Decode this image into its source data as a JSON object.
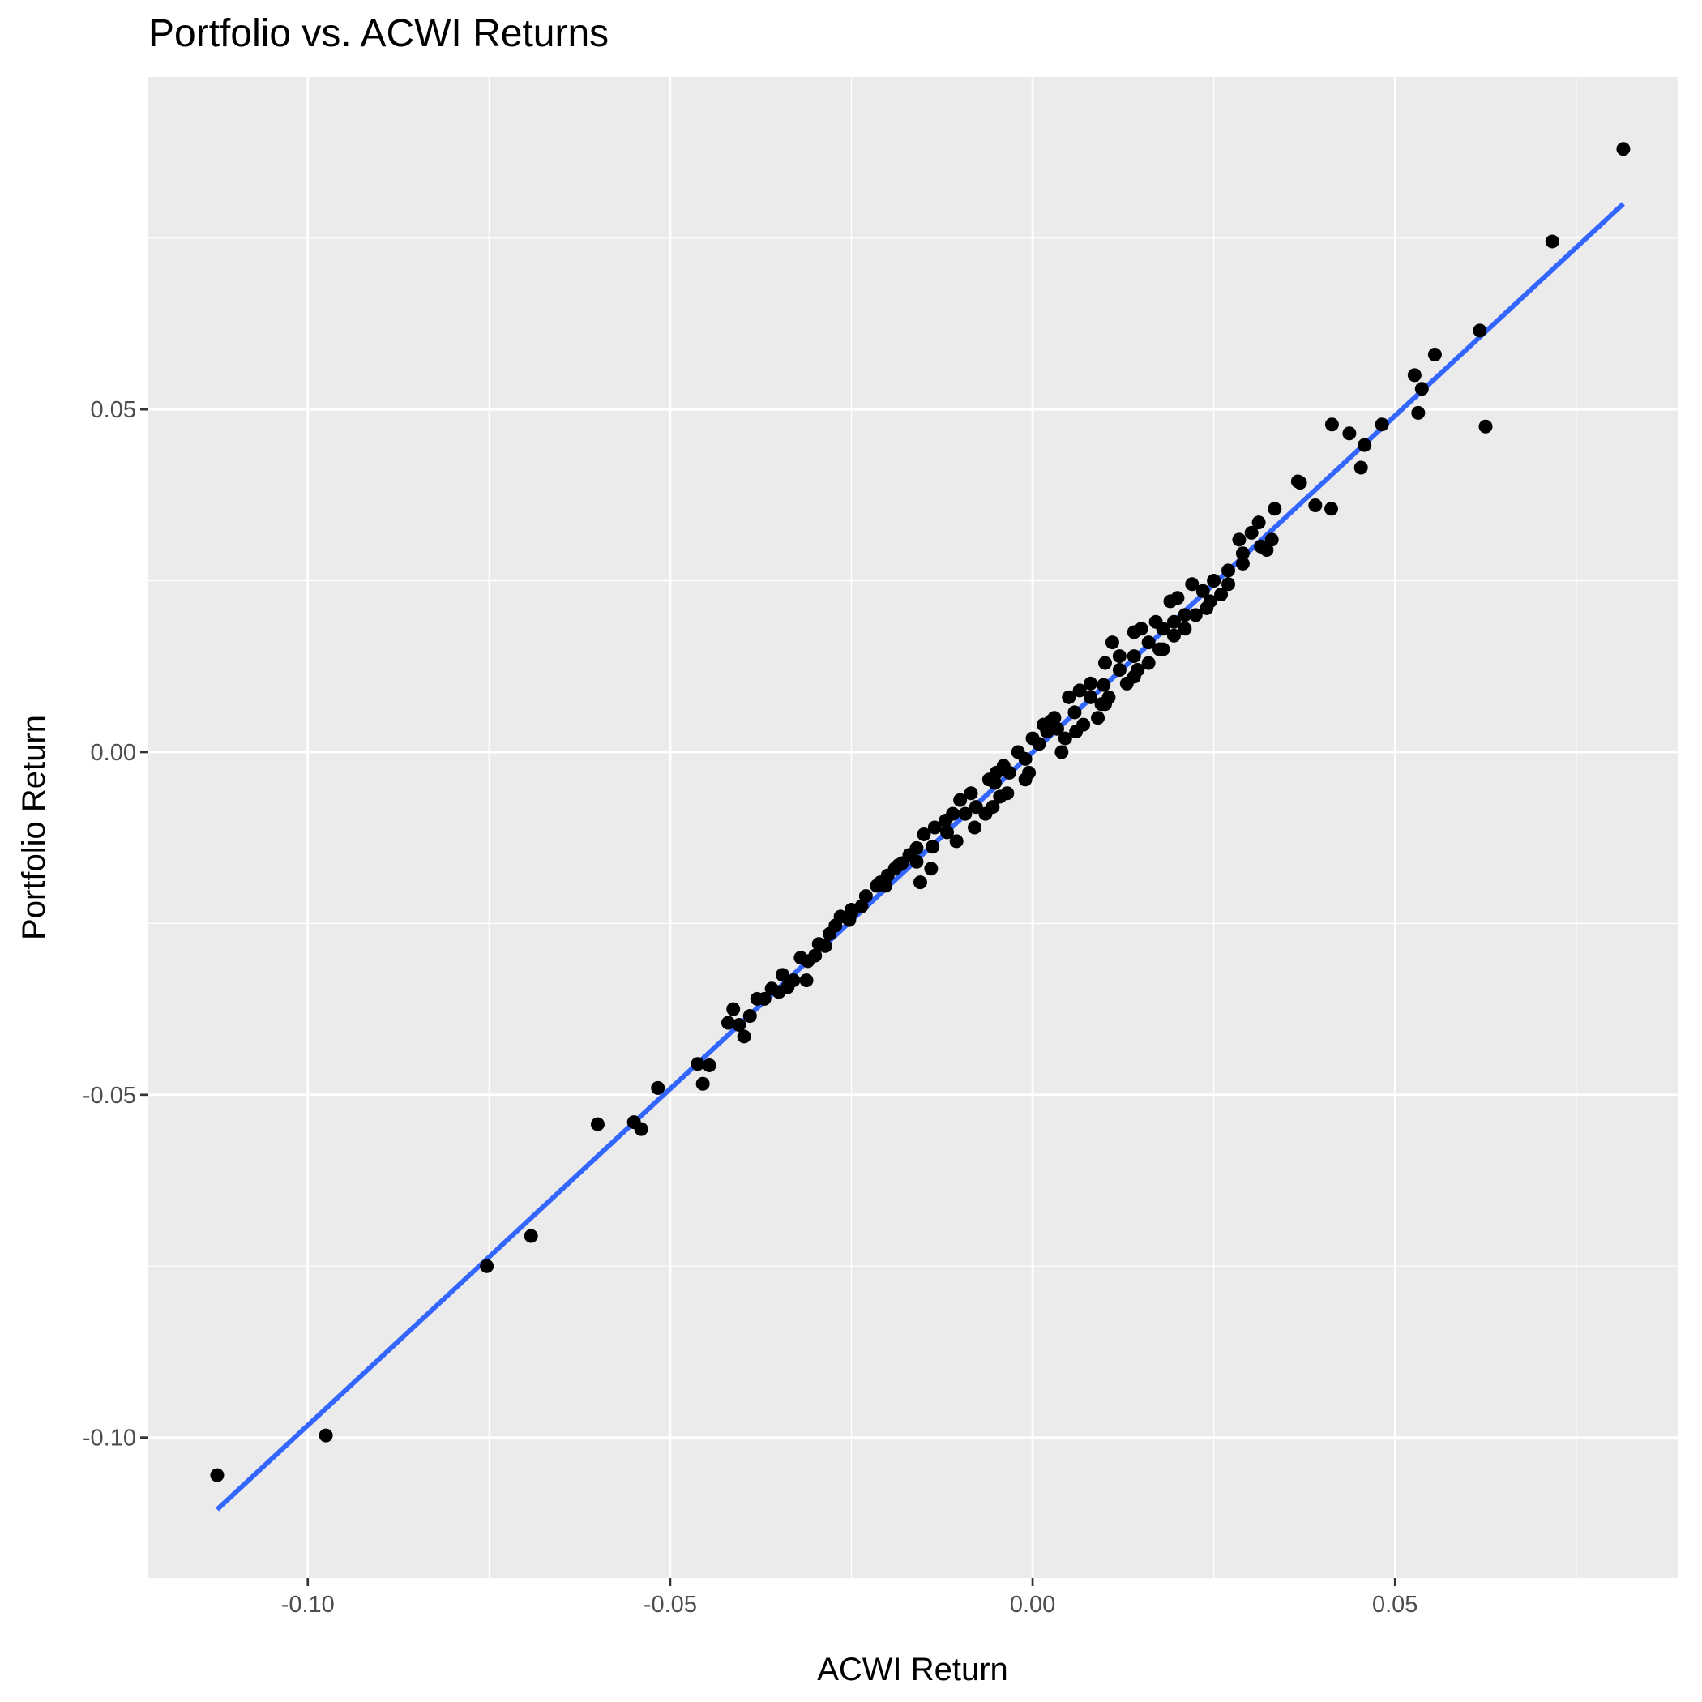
{
  "chart_data": {
    "type": "scatter",
    "title": "Portfolio vs. ACWI Returns",
    "xlabel": "ACWI Return",
    "ylabel": "Portfolio Return",
    "xlim": [
      -0.122,
      0.089
    ],
    "ylim": [
      -0.1205,
      0.0985
    ],
    "x_ticks": [
      -0.1,
      -0.05,
      0.0,
      0.05
    ],
    "x_tick_labels": [
      "-0.10",
      "-0.05",
      "0.00",
      "0.05"
    ],
    "y_ticks": [
      -0.1,
      -0.05,
      0.0,
      0.05
    ],
    "y_tick_labels": [
      "-0.10",
      "-0.05",
      "0.00",
      "0.05"
    ],
    "grid": true,
    "legend": "none",
    "colors": {
      "panel": "#ebebeb",
      "grid": "#ffffff",
      "points": "#000000",
      "fit_line": "#3366ff"
    },
    "fit_line": {
      "x": [
        -0.1125,
        0.0815
      ],
      "y": [
        -0.1105,
        0.08
      ]
    },
    "series": [
      {
        "x": [
          0.0815,
          0.0717,
          0.0617,
          0.0555,
          0.0527,
          0.0537,
          0.0532,
          0.0625,
          0.0413,
          0.0437,
          0.0458,
          0.0482,
          0.0453,
          0.0366,
          0.0369,
          0.039,
          0.0412,
          0.0334,
          0.0312,
          0.0302,
          0.0285,
          0.0315,
          0.0323,
          0.029,
          0.027,
          0.025,
          0.0235,
          0.021,
          0.0195,
          0.02,
          0.018,
          0.016,
          0.014,
          0.012,
          0.0098,
          0.008,
          0.0058,
          0.0034,
          0.0009,
          -0.001,
          -0.0032,
          -0.0052,
          -0.0078,
          -0.0093,
          -0.0118,
          -0.0138,
          -0.016,
          -0.018,
          -0.0203,
          -0.0236,
          -0.0253,
          -0.0272,
          -0.0286,
          -0.03,
          -0.031,
          -0.0312,
          -0.033,
          -0.0338,
          -0.035,
          -0.037,
          -0.039,
          -0.0405,
          -0.0413,
          -0.0398,
          -0.0446,
          -0.0462,
          -0.0455,
          -0.0517,
          -0.055,
          -0.054,
          -0.06,
          -0.0692,
          -0.0753,
          -0.0975,
          -0.1125,
          0.011,
          0.014,
          0.019,
          0.007,
          0.002,
          -0.004,
          -0.01,
          -0.015,
          -0.02,
          -0.025,
          0.0225,
          0.016,
          0.013,
          0.01,
          0.006,
          -0.014,
          -0.0155,
          -0.008,
          -0.001,
          0.004,
          0.009,
          0.014,
          0.018,
          0.024,
          0.027,
          0.029,
          0.033,
          0.022,
          0.017,
          0.012,
          0.008,
          0.003,
          -0.002,
          -0.006,
          -0.011,
          -0.016,
          -0.021,
          -0.025,
          -0.028,
          -0.032,
          -0.036,
          -0.038,
          -0.042,
          0.005,
          0.0,
          -0.005,
          0.01,
          0.015,
          -0.012,
          -0.017,
          -0.019,
          -0.023,
          0.021,
          0.026,
          0.0065,
          -0.0035,
          -0.0065,
          0.0015,
          0.0105,
          0.0175,
          -0.0085,
          -0.0135,
          -0.0185,
          -0.0215,
          -0.0265,
          -0.0295,
          -0.0345,
          0.0245,
          0.0195,
          0.0145,
          0.0095,
          0.0045,
          -0.0005,
          -0.0055,
          -0.0105,
          -0.0045,
          0.0025
        ],
        "y": [
          0.088,
          0.0745,
          0.0615,
          0.058,
          0.055,
          0.053,
          0.0495,
          0.0475,
          0.0478,
          0.0465,
          0.0448,
          0.0478,
          0.0415,
          0.0395,
          0.0393,
          0.036,
          0.0355,
          0.0355,
          0.0335,
          0.032,
          0.031,
          0.03,
          0.0295,
          0.029,
          0.0265,
          0.025,
          0.0235,
          0.02,
          0.019,
          0.0225,
          0.018,
          0.016,
          0.014,
          0.012,
          0.0098,
          0.008,
          0.0058,
          0.0034,
          0.0012,
          -0.001,
          -0.003,
          -0.0045,
          -0.008,
          -0.009,
          -0.0117,
          -0.0138,
          -0.016,
          -0.0162,
          -0.0195,
          -0.0225,
          -0.0245,
          -0.0253,
          -0.0283,
          -0.0297,
          -0.0305,
          -0.0333,
          -0.0333,
          -0.0343,
          -0.035,
          -0.036,
          -0.0385,
          -0.0398,
          -0.0375,
          -0.0415,
          -0.0457,
          -0.0455,
          -0.0484,
          -0.049,
          -0.054,
          -0.055,
          -0.0543,
          -0.0706,
          -0.075,
          -0.0997,
          -0.1055,
          0.016,
          0.0175,
          0.022,
          0.004,
          0.003,
          -0.002,
          -0.007,
          -0.012,
          -0.018,
          -0.023,
          0.02,
          0.013,
          0.01,
          0.007,
          0.003,
          -0.017,
          -0.019,
          -0.011,
          -0.004,
          0.0,
          0.005,
          0.011,
          0.015,
          0.021,
          0.0245,
          0.0275,
          0.031,
          0.0245,
          0.019,
          0.014,
          0.01,
          0.005,
          0.0,
          -0.004,
          -0.009,
          -0.014,
          -0.019,
          -0.0235,
          -0.0265,
          -0.03,
          -0.0345,
          -0.036,
          -0.0395,
          0.008,
          0.002,
          -0.003,
          0.013,
          0.018,
          -0.01,
          -0.015,
          -0.017,
          -0.021,
          0.018,
          0.023,
          0.009,
          -0.006,
          -0.009,
          0.004,
          0.008,
          0.015,
          -0.006,
          -0.011,
          -0.0165,
          -0.0195,
          -0.024,
          -0.028,
          -0.0325,
          0.022,
          0.017,
          0.012,
          0.007,
          0.002,
          -0.003,
          -0.008,
          -0.013,
          -0.0065,
          0.0045
        ]
      }
    ]
  }
}
